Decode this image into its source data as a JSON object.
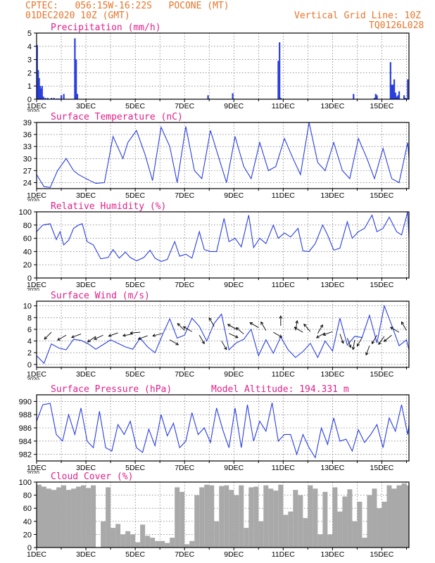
{
  "header": {
    "line1_left": "CPTEC:   056:15W-16:22S   POCONE (MT)",
    "line2_left": "01DEC2020 10Z (GMT)",
    "line1_right": "Vertical Grid Line: 10Z",
    "line2_right": "TQ0126L028"
  },
  "colors": {
    "header": "#e8742a",
    "title": "#e0208a",
    "series": "#2a3fe0",
    "bars": "#2a3fe0",
    "cloud": "#a9a9a9",
    "grid": "#555555"
  },
  "x_axis": {
    "tick_labels": [
      "1DEC",
      "3DEC",
      "5DEC",
      "7DEC",
      "9DEC",
      "11DEC",
      "13DEC",
      "15DEC"
    ],
    "year_label": "2020",
    "x_range_days": [
      0,
      15.1
    ],
    "vertical_grid_every_days": 1
  },
  "chart_data": [
    {
      "id": "precip",
      "type": "bar",
      "title": "Precipitation (mm/h)",
      "ylim": [
        0,
        5
      ],
      "yticks": [
        0,
        1,
        2,
        3,
        4,
        5
      ],
      "x": [
        0.02,
        0.06,
        0.1,
        0.14,
        0.18,
        0.22,
        0.27,
        0.35,
        0.45,
        0.6,
        0.7,
        0.8,
        0.86,
        0.92,
        1.0,
        1.1,
        1.55,
        1.6,
        1.65,
        6.95,
        7.95,
        9.8,
        9.85,
        9.9,
        12.85,
        13.7,
        13.75,
        13.8,
        14.35,
        14.4,
        14.45,
        14.5,
        14.55,
        14.6,
        14.65,
        14.7,
        14.9,
        14.95,
        15.05
      ],
      "values": [
        4.1,
        2.2,
        1.6,
        1.0,
        0.8,
        1.0,
        0.2,
        0.1,
        0.1,
        0.1,
        0.1,
        0.05,
        0.05,
        0.05,
        0.3,
        0.4,
        4.6,
        3.0,
        0.4,
        0.3,
        0.45,
        2.9,
        4.3,
        0.1,
        0.4,
        0.1,
        0.4,
        0.3,
        2.8,
        1.1,
        1.1,
        1.5,
        0.5,
        0.2,
        0.3,
        0.6,
        0.3,
        0.1,
        1.5
      ]
    },
    {
      "id": "temp",
      "type": "line",
      "title": "Surface Temperature (nC)",
      "ylim": [
        22.5,
        39
      ],
      "yticks": [
        24,
        27,
        30,
        33,
        36,
        39
      ],
      "x": [
        0,
        0.3,
        0.55,
        0.85,
        1.2,
        1.5,
        1.7,
        2.0,
        2.4,
        2.75,
        3.1,
        3.5,
        3.7,
        4.05,
        4.4,
        4.7,
        5.05,
        5.4,
        5.7,
        6.05,
        6.4,
        6.7,
        7.05,
        7.4,
        7.7,
        8.05,
        8.4,
        8.7,
        9.05,
        9.4,
        9.7,
        10.05,
        10.4,
        10.7,
        11.05,
        11.4,
        11.7,
        12.05,
        12.4,
        12.7,
        13.05,
        13.4,
        13.7,
        14.05,
        14.4,
        14.7,
        15.05,
        15.1
      ],
      "values": [
        26,
        23,
        22.8,
        27,
        30,
        27,
        26,
        25,
        23.8,
        24,
        35.5,
        30,
        34,
        37,
        31,
        24.5,
        37.8,
        33,
        24,
        38,
        27,
        25,
        37,
        30,
        24,
        35.5,
        28,
        25,
        34,
        27,
        28,
        35,
        30,
        26,
        39,
        29,
        27,
        34,
        27,
        25,
        35,
        30,
        25,
        32.5,
        25,
        24,
        34,
        30
      ]
    },
    {
      "id": "rh",
      "type": "line",
      "title": "Relative Humidity (%)",
      "ylim": [
        0,
        100
      ],
      "yticks": [
        0,
        20,
        40,
        60,
        80,
        100
      ],
      "x": [
        0,
        0.25,
        0.55,
        0.8,
        0.95,
        1.1,
        1.3,
        1.5,
        1.7,
        1.85,
        2.05,
        2.3,
        2.6,
        2.9,
        3.1,
        3.35,
        3.6,
        3.8,
        4.05,
        4.35,
        4.6,
        4.8,
        5.05,
        5.3,
        5.6,
        5.8,
        6.05,
        6.3,
        6.6,
        6.8,
        7.05,
        7.3,
        7.6,
        7.8,
        8.05,
        8.3,
        8.6,
        8.8,
        9.05,
        9.3,
        9.6,
        9.8,
        10.05,
        10.3,
        10.6,
        10.8,
        11.05,
        11.3,
        11.6,
        11.8,
        12.05,
        12.3,
        12.6,
        12.8,
        13.05,
        13.3,
        13.6,
        13.8,
        14.05,
        14.3,
        14.6,
        14.8,
        15.05,
        15.1
      ],
      "values": [
        70,
        80,
        82,
        58,
        70,
        50,
        57,
        75,
        80,
        82,
        55,
        50,
        29,
        31,
        43,
        30,
        39,
        31,
        26,
        31,
        42,
        30,
        25,
        28,
        55,
        33,
        36,
        30,
        70,
        43,
        40,
        40,
        90,
        55,
        60,
        47,
        95,
        46,
        60,
        52,
        80,
        60,
        68,
        62,
        75,
        41,
        40,
        52,
        80,
        65,
        42,
        45,
        85,
        60,
        70,
        75,
        95,
        70,
        75,
        92,
        70,
        65,
        100,
        60
      ]
    },
    {
      "id": "wind",
      "type": "line",
      "title": "Surface Wind (m/s)",
      "ylim": [
        -0.5,
        10.8
      ],
      "yticks": [
        0,
        2,
        4,
        6,
        8,
        10
      ],
      "x": [
        0,
        0.3,
        0.6,
        0.9,
        1.2,
        1.5,
        1.8,
        2.1,
        2.4,
        2.7,
        3.0,
        3.3,
        3.6,
        3.9,
        4.2,
        4.5,
        4.8,
        5.1,
        5.4,
        5.7,
        6.0,
        6.3,
        6.6,
        6.9,
        7.2,
        7.5,
        7.8,
        8.1,
        8.4,
        8.7,
        9.0,
        9.3,
        9.6,
        9.9,
        10.2,
        10.5,
        10.8,
        11.1,
        11.4,
        11.7,
        12.0,
        12.3,
        12.6,
        12.9,
        13.2,
        13.5,
        13.8,
        14.1,
        14.4,
        14.7,
        15.0,
        15.1
      ],
      "values": [
        1.5,
        0.2,
        3.5,
        2.8,
        2.5,
        4.3,
        4.1,
        3.5,
        2.6,
        3.4,
        4.2,
        3.6,
        3.0,
        2.6,
        4.5,
        3.0,
        2.0,
        5.0,
        7.8,
        4.5,
        5.0,
        7.9,
        6.5,
        4.0,
        7.0,
        8.6,
        2.5,
        3.7,
        4.3,
        6.0,
        1.5,
        4.2,
        1.9,
        4.7,
        2.5,
        1.2,
        2.2,
        3.6,
        1.2,
        4.0,
        2.3,
        7.9,
        3.3,
        4.8,
        4.6,
        8.4,
        3.7,
        10.0,
        6.7,
        3.2,
        4.2,
        2.5
      ]
    },
    {
      "id": "pressure",
      "type": "line",
      "title": "Surface Pressure (hPa)",
      "subtitle": "Model Altitude: 194.331 m",
      "ylim": [
        981,
        991
      ],
      "yticks": [
        982,
        984,
        986,
        988,
        990
      ],
      "x": [
        0,
        0.25,
        0.55,
        0.8,
        1.05,
        1.3,
        1.55,
        1.8,
        2.05,
        2.3,
        2.55,
        2.8,
        3.05,
        3.3,
        3.55,
        3.8,
        4.05,
        4.3,
        4.55,
        4.8,
        5.05,
        5.3,
        5.55,
        5.8,
        6.05,
        6.3,
        6.55,
        6.8,
        7.05,
        7.3,
        7.55,
        7.8,
        8.05,
        8.3,
        8.55,
        8.8,
        9.05,
        9.3,
        9.55,
        9.8,
        10.05,
        10.3,
        10.55,
        10.8,
        11.05,
        11.3,
        11.55,
        11.8,
        12.05,
        12.3,
        12.55,
        12.8,
        13.05,
        13.3,
        13.55,
        13.8,
        14.05,
        14.3,
        14.55,
        14.8,
        15.05,
        15.1
      ],
      "values": [
        987,
        989.5,
        989.7,
        985,
        984,
        988,
        985,
        989,
        984,
        983,
        988.5,
        983,
        982.5,
        986.5,
        985,
        987,
        983,
        982.3,
        985.8,
        983.3,
        988,
        984.8,
        986.7,
        983,
        984,
        988.3,
        985,
        986,
        983.8,
        989,
        985.7,
        983,
        989,
        983,
        989.5,
        984,
        987,
        985.5,
        989.8,
        984,
        985,
        985,
        982,
        985,
        983,
        981.5,
        986,
        983.5,
        987.5,
        984,
        984.3,
        982.5,
        985.7,
        983.8,
        985,
        986.5,
        983,
        987.5,
        985.5,
        989.5,
        985,
        986.5
      ]
    },
    {
      "id": "cloud",
      "type": "bar",
      "title": "Cloud Cover (%)",
      "ylim": [
        0,
        100
      ],
      "yticks": [
        0,
        20,
        40,
        60,
        80,
        100
      ],
      "x": [
        0,
        0.2,
        0.4,
        0.6,
        0.8,
        1.0,
        1.2,
        1.4,
        1.6,
        1.8,
        2.0,
        2.2,
        2.4,
        2.6,
        2.8,
        3.0,
        3.2,
        3.4,
        3.6,
        3.8,
        4.0,
        4.2,
        4.4,
        4.6,
        4.8,
        5.0,
        5.2,
        5.4,
        5.6,
        5.8,
        6.0,
        6.2,
        6.4,
        6.6,
        6.8,
        7.0,
        7.2,
        7.4,
        7.6,
        7.8,
        8.0,
        8.2,
        8.4,
        8.6,
        8.8,
        9.0,
        9.2,
        9.4,
        9.6,
        9.8,
        10.0,
        10.2,
        10.4,
        10.6,
        10.8,
        11.0,
        11.2,
        11.4,
        11.6,
        11.8,
        12.0,
        12.2,
        12.4,
        12.6,
        12.8,
        13.0,
        13.2,
        13.4,
        13.6,
        13.8,
        14.0,
        14.2,
        14.4,
        14.6,
        14.8,
        15.0
      ],
      "values": [
        96,
        93,
        90,
        88,
        92,
        95,
        88,
        90,
        93,
        95,
        91,
        95,
        0,
        40,
        92,
        30,
        36,
        20,
        25,
        20,
        8,
        35,
        18,
        15,
        10,
        10,
        7,
        15,
        92,
        85,
        5,
        10,
        80,
        92,
        96,
        95,
        40,
        94,
        95,
        88,
        80,
        95,
        30,
        92,
        93,
        40,
        95,
        90,
        87,
        96,
        50,
        55,
        88,
        80,
        45,
        95,
        90,
        20,
        85,
        20,
        92,
        55,
        78,
        89,
        40,
        70,
        15,
        80,
        90,
        60,
        70,
        95,
        90,
        95,
        98,
        95
      ]
    }
  ]
}
